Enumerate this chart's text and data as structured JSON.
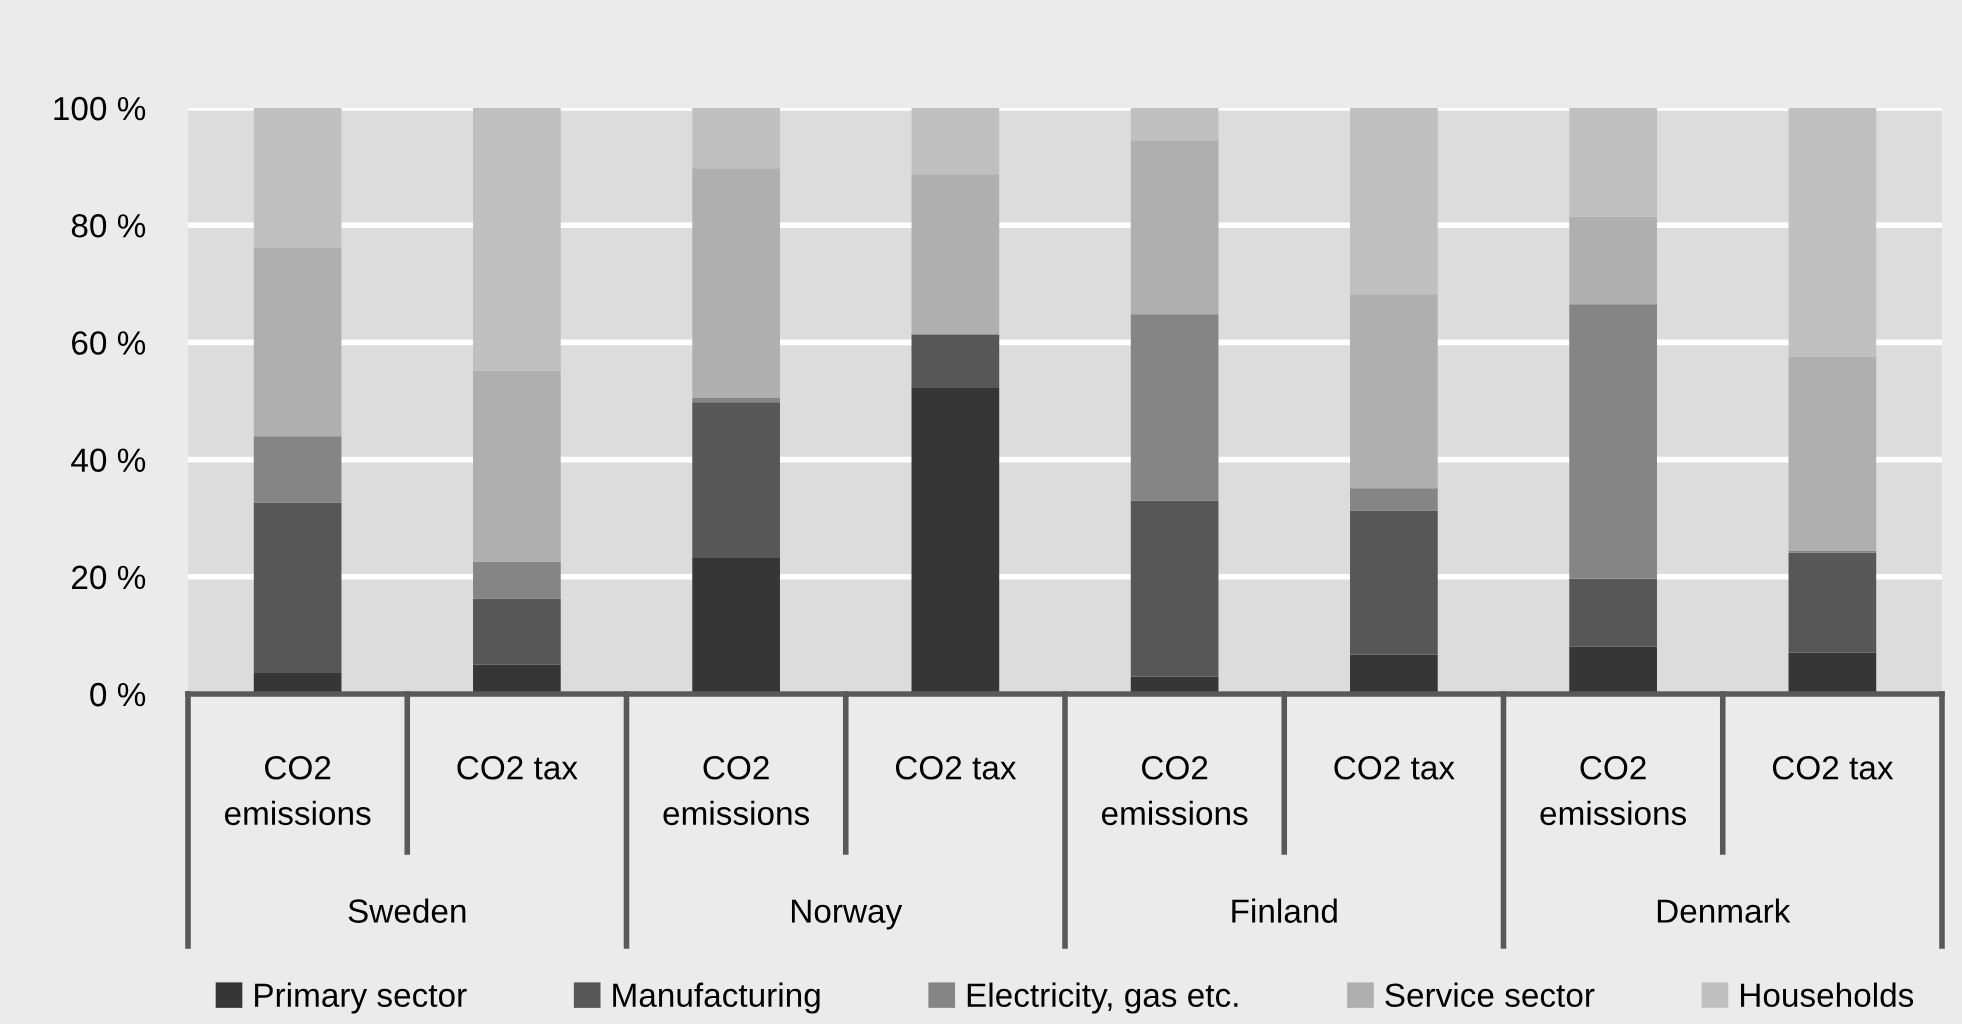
{
  "chart_data": {
    "type": "bar",
    "stacked": true,
    "categories": [
      "CO2 emissions",
      "CO2 tax",
      "CO2 emissions",
      "CO2 tax",
      "CO2 emissions",
      "CO2 tax",
      "CO2 emissions",
      "CO2 tax"
    ],
    "series": [
      {
        "name": "Primary sector",
        "color": "#363636",
        "values": [
          3.6,
          5.0,
          23.2,
          52.2,
          3.0,
          6.7,
          8.1,
          7.1
        ]
      },
      {
        "name": "Manufacturing",
        "color": "#575757",
        "values": [
          29.1,
          11.3,
          26.6,
          9.1,
          30.0,
          24.6,
          11.6,
          17.0
        ]
      },
      {
        "name": "Electricity, gas etc.",
        "color": "#858585",
        "values": [
          11.3,
          6.3,
          0.7,
          0.2,
          31.8,
          3.8,
          46.8,
          0.4
        ]
      },
      {
        "name": "Service sector",
        "color": "#afafaf",
        "values": [
          32.1,
          32.6,
          39.2,
          27.2,
          29.7,
          33.1,
          15.0,
          33.1
        ]
      },
      {
        "name": "Households",
        "color": "#c0c0c0",
        "values": [
          23.9,
          44.8,
          10.3,
          11.3,
          5.5,
          31.8,
          18.5,
          42.4
        ]
      }
    ],
    "ylim": [
      0,
      100
    ],
    "yticks": [
      {
        "value": 0,
        "label": "0 %"
      },
      {
        "value": 20,
        "label": "20 %"
      },
      {
        "value": 40,
        "label": "40 %"
      },
      {
        "value": 60,
        "label": "60 %"
      },
      {
        "value": 80,
        "label": "80 %"
      },
      {
        "value": 100,
        "label": "100 %"
      }
    ],
    "grid": "y",
    "legend": "bottom",
    "annotations": [
      "Sweden",
      "Norway",
      "Finland",
      "Denmark"
    ]
  }
}
